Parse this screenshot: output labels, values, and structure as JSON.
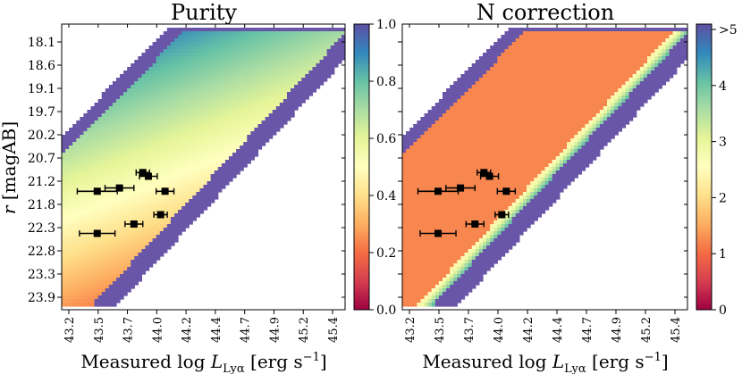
{
  "figure": {
    "panels": [
      {
        "title": "Purity",
        "colorbar_ticks": [
          "0.0",
          "0.2",
          "0.4",
          "0.6",
          "0.8",
          "1.0"
        ]
      },
      {
        "title": "N correction",
        "colorbar_ticks": [
          "0",
          "1",
          "2",
          "3",
          "4",
          ">5"
        ]
      }
    ],
    "xlabel_text": "Measured log ",
    "xlabel_symbol": "L",
    "xlabel_sub": "Lyα",
    "xlabel_units": " [erg s",
    "xlabel_exp": "−1",
    "xlabel_close": "]",
    "ylabel_symbol": "r",
    "ylabel_units": " [magAB]"
  },
  "chart_data": [
    {
      "type": "heatmap",
      "title": "Purity",
      "xlabel": "Measured log L_Lyα [erg s^-1]",
      "ylabel": "r [magAB]",
      "x_tick_labels": [
        "43.2",
        "43.5",
        "43.7",
        "44.0",
        "44.2",
        "44.4",
        "44.7",
        "44.9",
        "45.2",
        "45.4"
      ],
      "y_tick_labels": [
        "18.1",
        "18.6",
        "19.1",
        "19.7",
        "20.2",
        "20.7",
        "21.2",
        "21.8",
        "22.3",
        "22.8",
        "23.3",
        "23.9"
      ],
      "xlim": [
        43.1,
        45.65
      ],
      "ylim": [
        23.95,
        17.85
      ],
      "colorbar_range": [
        0.0,
        1.0
      ],
      "colormap": "Spectral",
      "note": "Purity rises from about 0.4 at faint r to ~0.9 toward bright magnitudes; cells with no data shown in dark blue-purple",
      "points": [
        {
          "x": 43.42,
          "y": 21.42,
          "xerr": 0.18,
          "yerr": 0.04
        },
        {
          "x": 43.62,
          "y": 21.35,
          "xerr": 0.13,
          "yerr": 0.04
        },
        {
          "x": 43.83,
          "y": 21.02,
          "xerr": 0.06,
          "yerr": 0.06
        },
        {
          "x": 43.88,
          "y": 21.1,
          "xerr": 0.08,
          "yerr": 0.04
        },
        {
          "x": 44.03,
          "y": 21.42,
          "xerr": 0.08,
          "yerr": 0.04
        },
        {
          "x": 43.99,
          "y": 21.92,
          "xerr": 0.06,
          "yerr": 0.04
        },
        {
          "x": 43.75,
          "y": 22.12,
          "xerr": 0.08,
          "yerr": 0.04
        },
        {
          "x": 43.42,
          "y": 22.32,
          "xerr": 0.16,
          "yerr": 0.04
        }
      ]
    },
    {
      "type": "heatmap",
      "title": "N correction",
      "xlabel": "Measured log L_Lyα [erg s^-1]",
      "ylabel": "",
      "x_tick_labels": [
        "43.2",
        "43.5",
        "43.7",
        "44.0",
        "44.2",
        "44.4",
        "44.7",
        "44.9",
        "45.2",
        "45.4"
      ],
      "xlim": [
        43.1,
        45.65
      ],
      "ylim": [
        23.95,
        17.85
      ],
      "colorbar_range": [
        0,
        5
      ],
      "colormap": "Spectral",
      "note": "N correction mostly ~1.2 (orange), rising to ~2-3 along the faint edge and >5 outside the valid region",
      "points": [
        {
          "x": 43.42,
          "y": 21.42,
          "xerr": 0.18,
          "yerr": 0.04
        },
        {
          "x": 43.62,
          "y": 21.35,
          "xerr": 0.13,
          "yerr": 0.04
        },
        {
          "x": 43.83,
          "y": 21.02,
          "xerr": 0.06,
          "yerr": 0.06
        },
        {
          "x": 43.88,
          "y": 21.1,
          "xerr": 0.08,
          "yerr": 0.04
        },
        {
          "x": 44.03,
          "y": 21.42,
          "xerr": 0.08,
          "yerr": 0.04
        },
        {
          "x": 43.99,
          "y": 21.92,
          "xerr": 0.06,
          "yerr": 0.04
        },
        {
          "x": 43.75,
          "y": 22.12,
          "xerr": 0.08,
          "yerr": 0.04
        },
        {
          "x": 43.42,
          "y": 22.32,
          "xerr": 0.16,
          "yerr": 0.04
        }
      ]
    }
  ]
}
